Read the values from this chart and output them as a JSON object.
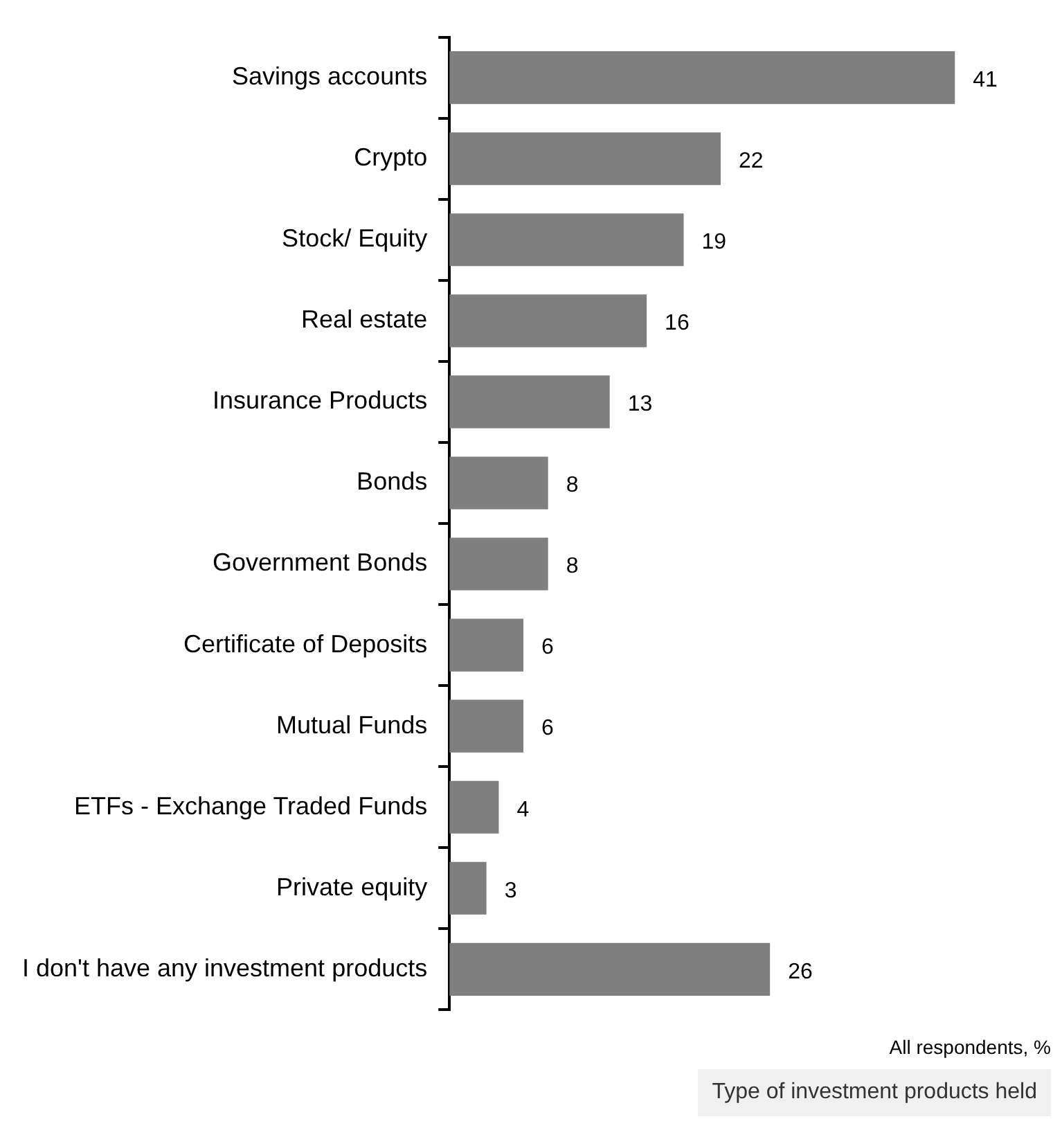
{
  "chart_data": {
    "type": "bar",
    "orientation": "horizontal",
    "data_labels": true,
    "legend": false,
    "categories": [
      "Savings accounts",
      "Crypto",
      "Stock/ Equity",
      "Real estate",
      "Insurance Products",
      "Bonds",
      "Government Bonds",
      "Certificate of Deposits",
      "Mutual Funds",
      "ETFs - Exchange Traded Funds",
      "Private equity",
      "I don't have any investment products"
    ],
    "values": [
      41,
      22,
      19,
      16,
      13,
      8,
      8,
      6,
      6,
      4,
      3,
      26
    ],
    "color": "#7f7f7f",
    "annotations": [
      "All respondents, %",
      "Type of investment products held"
    ]
  }
}
